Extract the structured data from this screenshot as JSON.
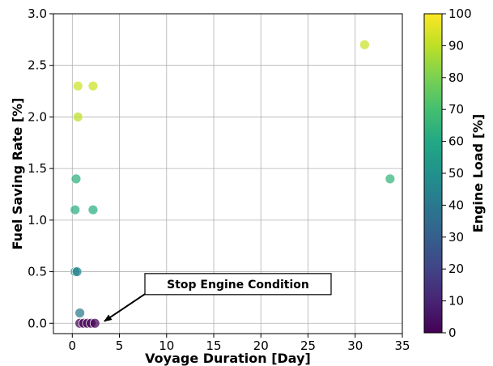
{
  "chart_data": {
    "type": "scatter",
    "xlabel": "Voyage Duration [Day]",
    "ylabel": "Fuel Saving Rate [%]",
    "xlim": [
      -2,
      35
    ],
    "ylim": [
      -0.1,
      3.0
    ],
    "xticks": [
      0,
      5,
      10,
      15,
      20,
      25,
      30,
      35
    ],
    "yticks": [
      0.0,
      0.5,
      1.0,
      1.5,
      2.0,
      2.5,
      3.0
    ],
    "ytick_labels": [
      "0.0",
      "0.5",
      "1.0",
      "1.5",
      "2.0",
      "2.5",
      "3.0"
    ],
    "grid": true,
    "points": [
      {
        "x": 0.6,
        "y": 2.3,
        "load": 92
      },
      {
        "x": 2.2,
        "y": 2.3,
        "load": 92
      },
      {
        "x": 0.6,
        "y": 2.0,
        "load": 90
      },
      {
        "x": 0.4,
        "y": 1.4,
        "load": 63
      },
      {
        "x": 0.3,
        "y": 1.1,
        "load": 62
      },
      {
        "x": 2.2,
        "y": 1.1,
        "load": 62
      },
      {
        "x": 0.3,
        "y": 0.5,
        "load": 45
      },
      {
        "x": 0.5,
        "y": 0.5,
        "load": 45
      },
      {
        "x": 0.8,
        "y": 0.1,
        "load": 40
      },
      {
        "x": 0.8,
        "y": 0.0,
        "load": 0
      },
      {
        "x": 1.2,
        "y": 0.0,
        "load": 0
      },
      {
        "x": 1.6,
        "y": 0.0,
        "load": 0
      },
      {
        "x": 2.0,
        "y": 0.0,
        "load": 0
      },
      {
        "x": 2.4,
        "y": 0.0,
        "load": 0
      },
      {
        "x": 31.0,
        "y": 2.7,
        "load": 92
      },
      {
        "x": 33.7,
        "y": 1.4,
        "load": 65
      }
    ],
    "colorbar": {
      "label": "Engine Load [%]",
      "min": 0,
      "max": 100,
      "ticks": [
        0,
        10,
        20,
        30,
        40,
        50,
        60,
        70,
        80,
        90,
        100
      ],
      "colormap": "viridis"
    },
    "annotation": {
      "text": "Stop Engine Condition",
      "x": 7.5,
      "y": 0.38,
      "arrow_to_x": 3.4,
      "arrow_to_y": 0.02
    }
  }
}
